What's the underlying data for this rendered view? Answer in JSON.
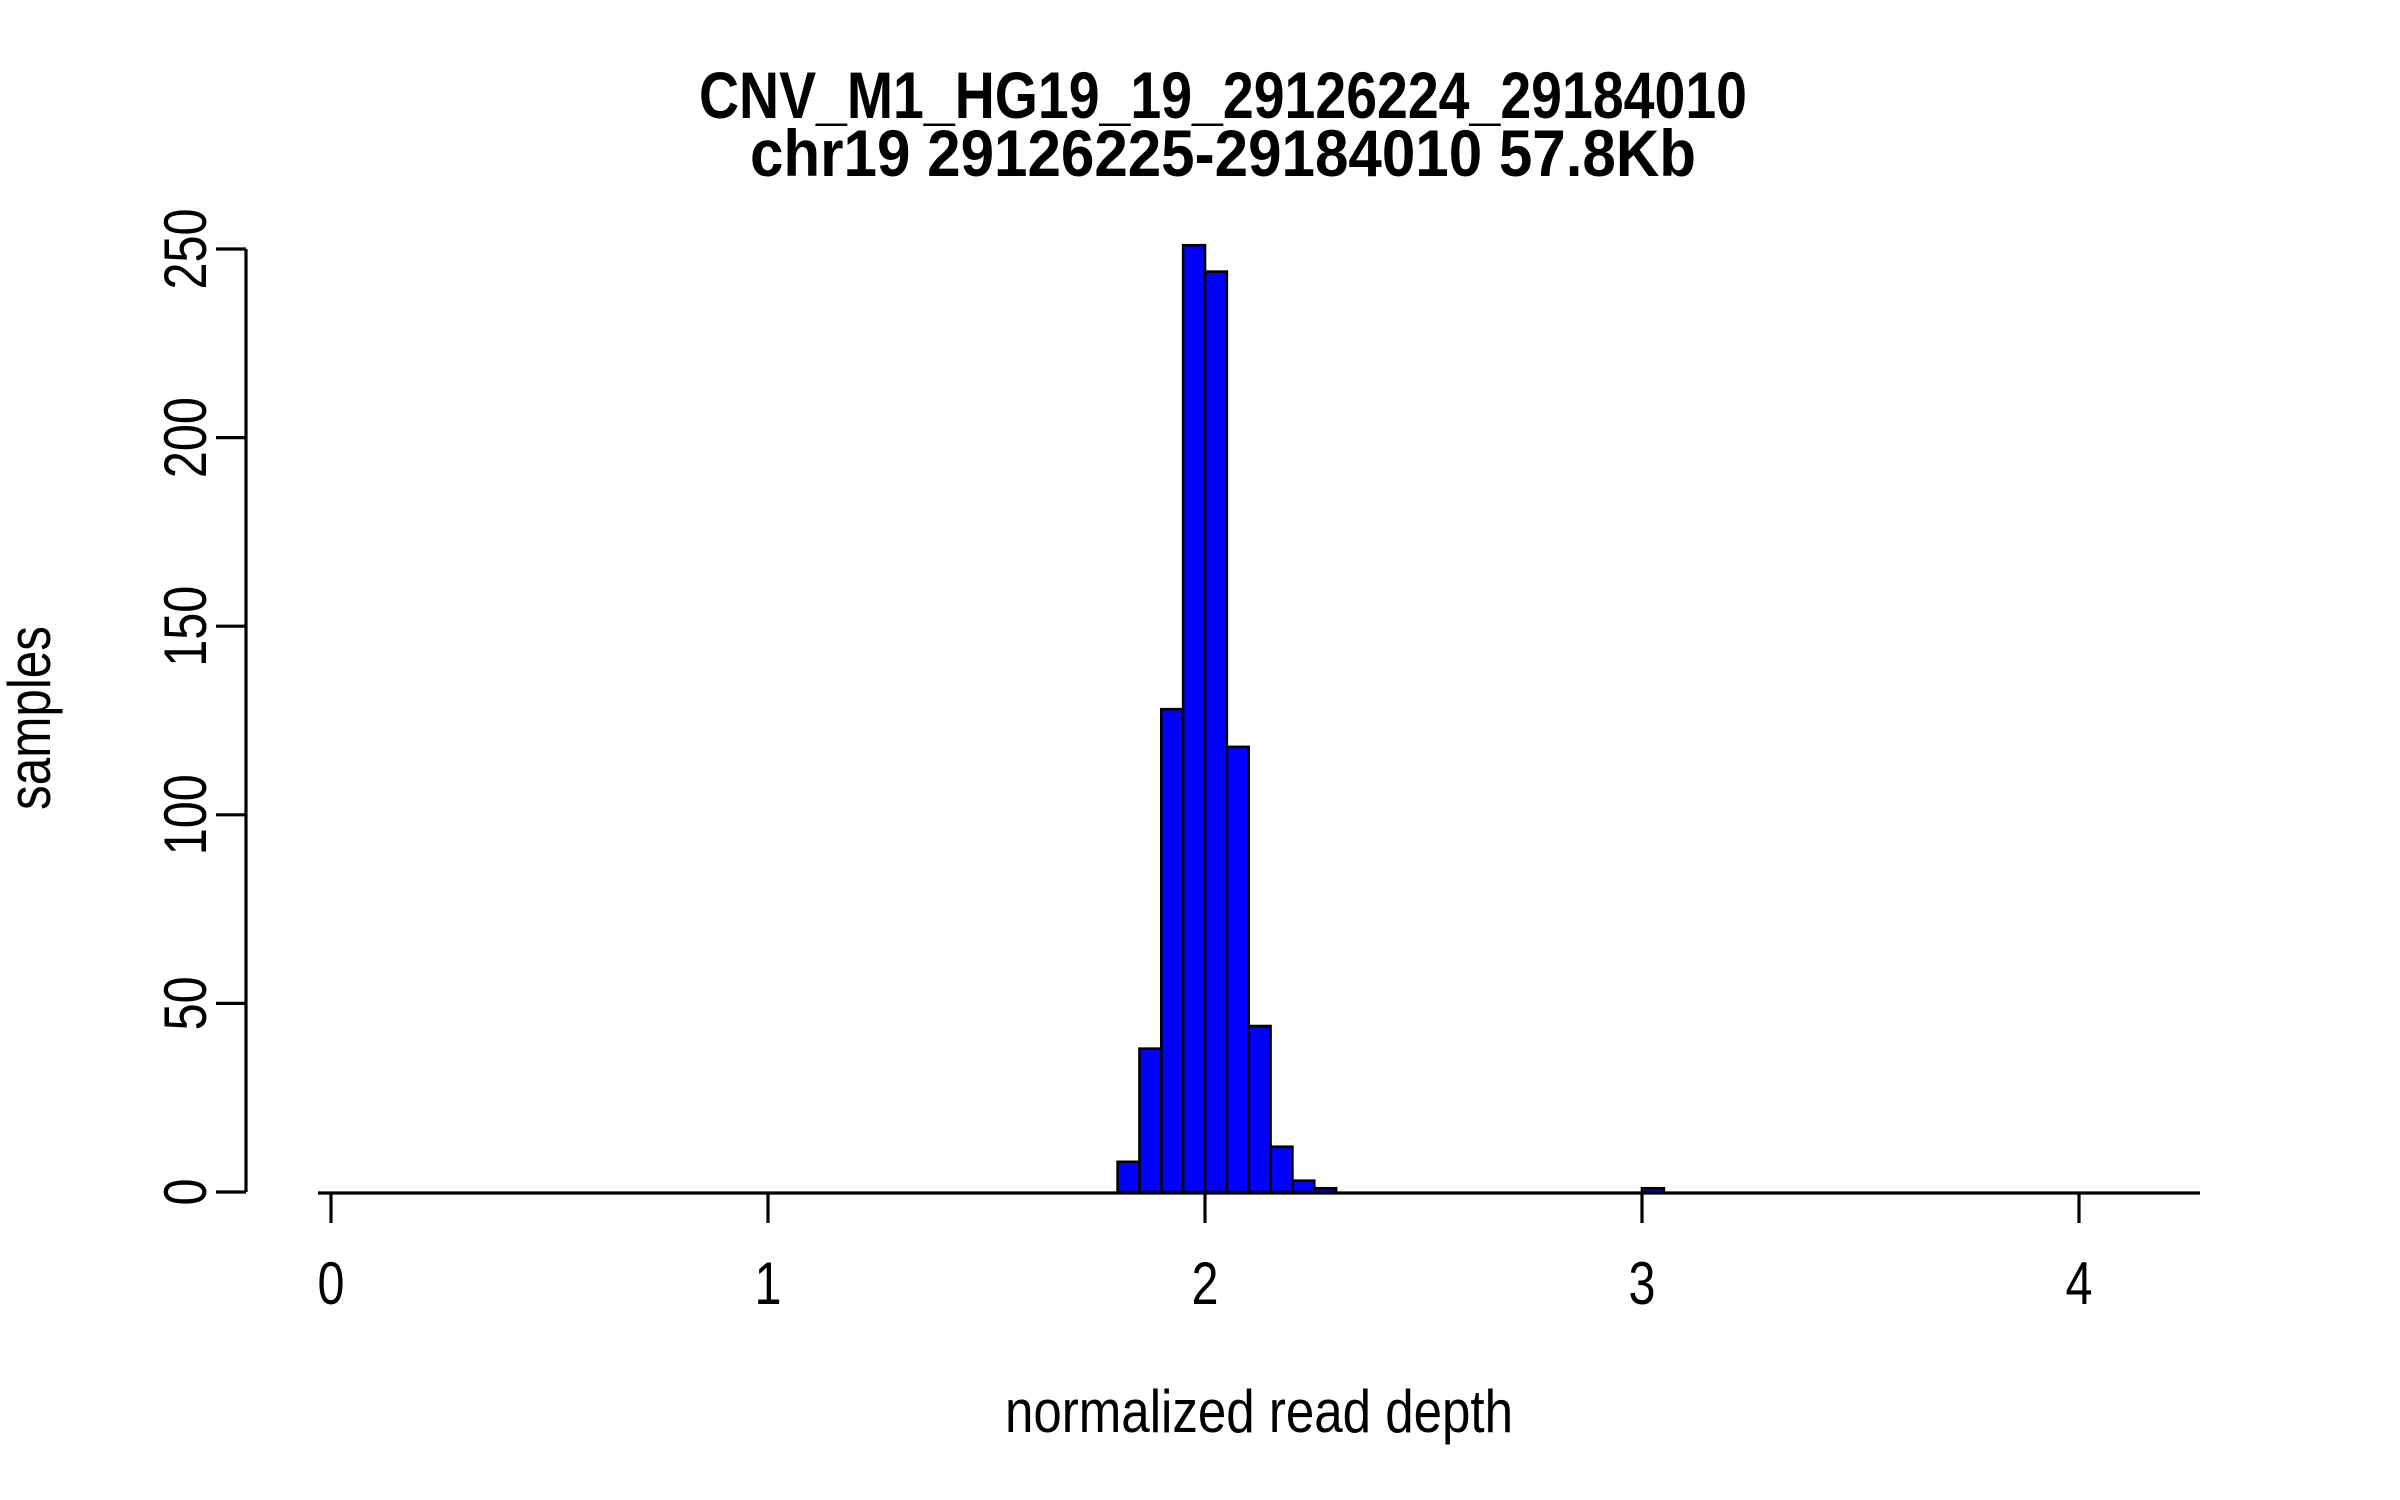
{
  "title": {
    "line1": "CNV_M1_HG19_19_29126224_29184010",
    "line2": "chr19 29126225-29184010 57.8Kb"
  },
  "axes": {
    "x": {
      "label": "normalized read depth",
      "ticks": [
        0,
        1,
        2,
        3,
        4
      ],
      "range": [
        -0.03,
        4.28
      ]
    },
    "y": {
      "label": "samples",
      "ticks": [
        0,
        50,
        100,
        150,
        200,
        250
      ],
      "range": [
        0,
        250
      ]
    }
  },
  "colors": {
    "bar_fill": "#0000ff",
    "bar_border": "#000000",
    "axis": "#000000",
    "text": "#000000",
    "background": "#ffffff"
  },
  "chart_data": {
    "type": "bar",
    "subtype": "histogram",
    "title": "CNV_M1_HG19_19_29126224_29184010",
    "subtitle": "chr19 29126225-29184010 57.8Kb",
    "xlabel": "normalized read depth",
    "ylabel": "samples",
    "xlim": [
      -0.03,
      4.28
    ],
    "ylim": [
      0,
      250
    ],
    "grid": false,
    "legend": false,
    "bin_width": 0.05,
    "bins": [
      {
        "x": 1.8,
        "count": 8
      },
      {
        "x": 1.85,
        "count": 38
      },
      {
        "x": 1.9,
        "count": 128
      },
      {
        "x": 1.95,
        "count": 251
      },
      {
        "x": 2.0,
        "count": 244
      },
      {
        "x": 2.05,
        "count": 118
      },
      {
        "x": 2.1,
        "count": 44
      },
      {
        "x": 2.15,
        "count": 12
      },
      {
        "x": 2.2,
        "count": 3
      },
      {
        "x": 2.25,
        "count": 1
      },
      {
        "x": 3.0,
        "count": 1
      }
    ]
  }
}
